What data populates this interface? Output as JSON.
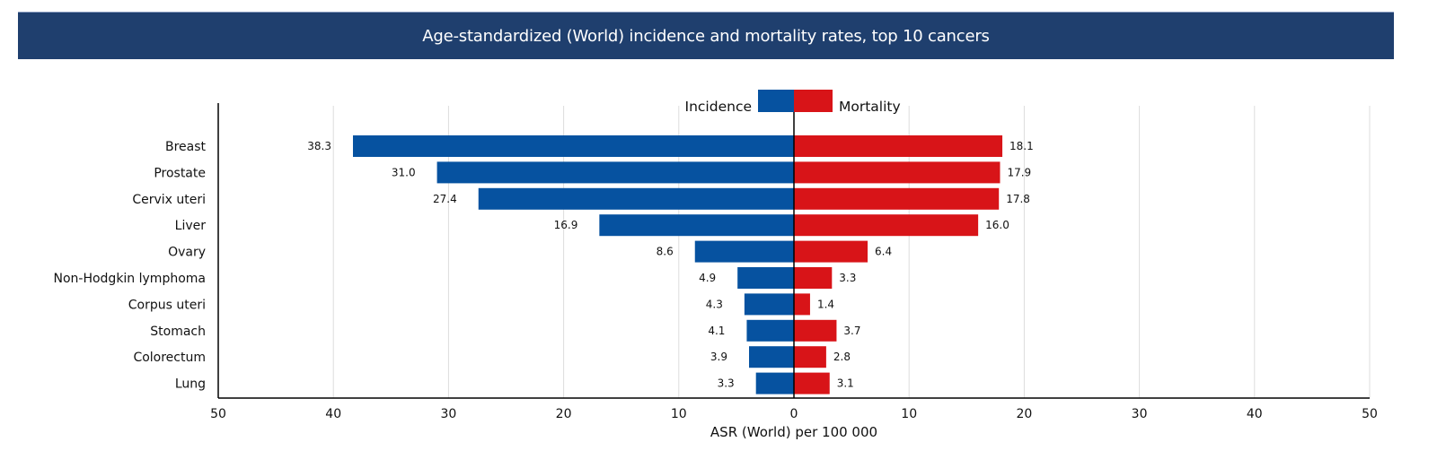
{
  "header": {
    "title": "Age-standardized (World) incidence and mortality rates, top 10 cancers"
  },
  "colors": {
    "banner": "#1f3f6e",
    "incidence": "#0652a0",
    "mortality": "#d81418"
  },
  "chart_data": {
    "type": "bar",
    "orientation": "horizontal-diverging",
    "title": "Age-standardized (World) incidence and mortality rates, top 10 cancers",
    "xlabel": "ASR (World) per 100 000",
    "ylabel": "",
    "xlim": [
      -50,
      50
    ],
    "xticks": [
      -50,
      -40,
      -30,
      -20,
      -10,
      0,
      10,
      20,
      30,
      40,
      50
    ],
    "xtick_labels": [
      "50",
      "40",
      "30",
      "20",
      "10",
      "0",
      "10",
      "20",
      "30",
      "40",
      "50"
    ],
    "grid": "vertical",
    "legend": {
      "placement": "top-center",
      "entries": [
        {
          "name": "Incidence",
          "color": "#0652a0"
        },
        {
          "name": "Mortality",
          "color": "#d81418"
        }
      ]
    },
    "categories": [
      "Breast",
      "Prostate",
      "Cervix uteri",
      "Liver",
      "Ovary",
      "Non-Hodgkin lymphoma",
      "Corpus uteri",
      "Stomach",
      "Colorectum",
      "Lung"
    ],
    "series": [
      {
        "name": "Incidence",
        "side": "left",
        "values": [
          38.3,
          31.0,
          27.4,
          16.9,
          8.6,
          4.9,
          4.3,
          4.1,
          3.9,
          3.3
        ],
        "labels": [
          "38.3",
          "31.0",
          "27.4",
          "16.9",
          "8.6",
          "4.9",
          "4.3",
          "4.1",
          "3.9",
          "3.3"
        ]
      },
      {
        "name": "Mortality",
        "side": "right",
        "values": [
          18.1,
          17.9,
          17.8,
          16.0,
          6.4,
          3.3,
          1.4,
          3.7,
          2.8,
          3.1
        ],
        "labels": [
          "18.1",
          "17.9",
          "17.8",
          "16.0",
          "6.4",
          "3.3",
          "1.4",
          "3.7",
          "2.8",
          "3.1"
        ]
      }
    ]
  }
}
